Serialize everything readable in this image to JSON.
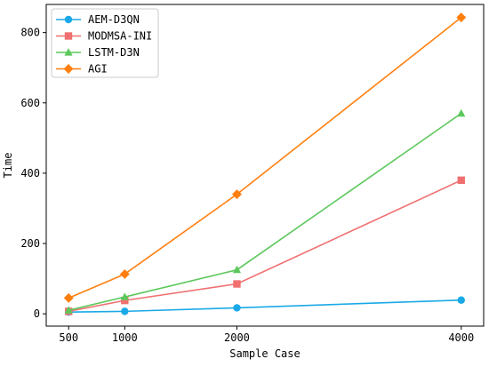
{
  "chart_data": {
    "type": "line",
    "title": "",
    "xlabel": "Sample Case",
    "ylabel": "Time",
    "x": [
      500,
      1000,
      2000,
      4000
    ],
    "xticks": [
      500,
      1000,
      2000,
      4000
    ],
    "yticks": [
      0,
      200,
      400,
      600,
      800
    ],
    "xlim": [
      300,
      4200
    ],
    "ylim": [
      -35,
      880
    ],
    "grid": false,
    "legend_position": "top-left",
    "series": [
      {
        "name": "AEM-D3QN",
        "values": [
          5,
          7,
          17,
          39
        ],
        "color": "#1aa9e6",
        "marker": "circle"
      },
      {
        "name": "MODMSA-INI",
        "values": [
          7,
          38,
          85,
          380
        ],
        "color": "#f07070",
        "marker": "square"
      },
      {
        "name": "LSTM-D3N",
        "values": [
          10,
          48,
          125,
          570
        ],
        "color": "#5cc85c",
        "marker": "triangle"
      },
      {
        "name": "AGI",
        "values": [
          45,
          113,
          340,
          843
        ],
        "color": "#ff7f0e",
        "marker": "diamond"
      }
    ]
  }
}
